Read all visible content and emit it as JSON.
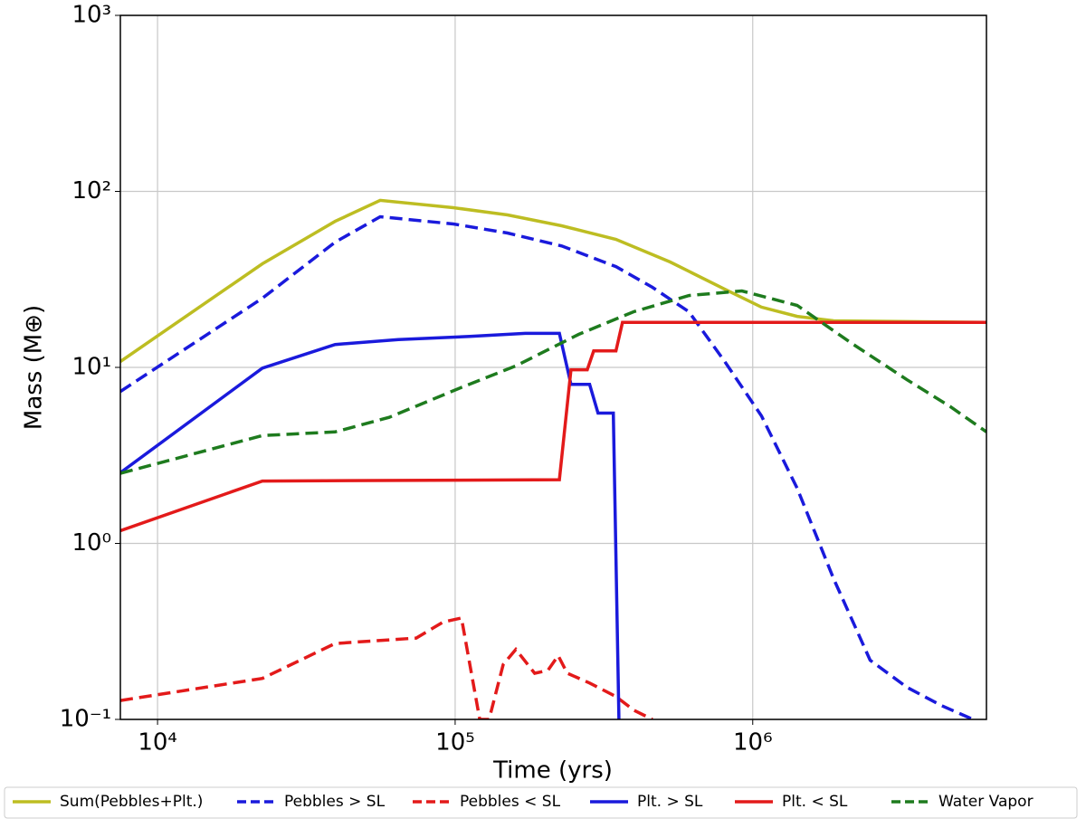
{
  "chart_data": {
    "type": "line",
    "xlabel": "Time  (yrs)",
    "ylabel": "Mass (M⊕)",
    "xscale": "log",
    "yscale": "log",
    "grid": true,
    "legend": "bottom",
    "xlim": [
      7500,
      6100000
    ],
    "ylim": [
      0.1,
      1000
    ],
    "xticks": [
      {
        "value": 10000,
        "label": "10⁴"
      },
      {
        "value": 100000,
        "label": "10⁵"
      },
      {
        "value": 1000000,
        "label": "10⁶"
      }
    ],
    "yticks": [
      {
        "value": 0.1,
        "label": "10⁻¹"
      },
      {
        "value": 1,
        "label": "10⁰"
      },
      {
        "value": 10,
        "label": "10¹"
      },
      {
        "value": 100,
        "label": "10²"
      },
      {
        "value": 1000,
        "label": "10³"
      }
    ],
    "series": [
      {
        "name": "Sum(Pebbles+Plt.)",
        "color": "#bdbd22",
        "linestyle": "solid",
        "x": [
          7500,
          22500,
          39500,
          56000,
          98600,
          150000,
          228000,
          347000,
          528000,
          805000,
          1070000,
          1410000,
          1870000,
          6100000
        ],
        "values": [
          10.8,
          38.8,
          67.6,
          88.9,
          80.8,
          73.5,
          63.8,
          53.4,
          39.7,
          27.8,
          22,
          19.5,
          18.4,
          18
        ]
      },
      {
        "name": "Pebbles > SL",
        "color": "#1a1adc",
        "linestyle": "dashed",
        "x": [
          7500,
          22500,
          39500,
          56000,
          98600,
          150000,
          228000,
          347000,
          460000,
          610000,
          805000,
          1070000,
          1410000,
          1870000,
          2480000,
          3300000,
          4300000,
          5500000
        ],
        "values": [
          7.3,
          24.7,
          51.5,
          71.8,
          65.3,
          58,
          49,
          37.4,
          28.5,
          20.7,
          10.8,
          5.3,
          2.06,
          0.63,
          0.217,
          0.152,
          0.12,
          0.1
        ]
      },
      {
        "name": "Pebbles < SL",
        "color": "#e31a1a",
        "linestyle": "dashed",
        "x": [
          7500,
          22500,
          39500,
          74000,
          91000,
          105000,
          121000,
          130000,
          145000,
          160000,
          185000,
          205000,
          222000,
          238000,
          283000,
          347000,
          398000,
          460000
        ],
        "values": [
          0.128,
          0.171,
          0.27,
          0.29,
          0.357,
          0.377,
          0.1,
          0.1,
          0.205,
          0.25,
          0.183,
          0.19,
          0.23,
          0.183,
          0.161,
          0.135,
          0.113,
          0.1
        ]
      },
      {
        "name": "Plt. > SL",
        "color": "#1a1adc",
        "linestyle": "solid",
        "x": [
          7500,
          22500,
          39500,
          64500,
          112000,
          172000,
          224000,
          245000,
          283000,
          302000,
          340000,
          355000
        ],
        "values": [
          2.52,
          9.9,
          13.5,
          14.4,
          15,
          15.6,
          15.6,
          8,
          8,
          5.5,
          5.5,
          0.1
        ]
      },
      {
        "name": "Plt. < SL",
        "color": "#e31a1a",
        "linestyle": "solid",
        "x": [
          7500,
          22500,
          224000,
          245000,
          278000,
          292000,
          347000,
          365000,
          6100000
        ],
        "values": [
          1.18,
          2.26,
          2.3,
          9.7,
          9.7,
          12.4,
          12.4,
          18,
          18
        ]
      },
      {
        "name": "Water Vapor",
        "color": "#1e7b1e",
        "linestyle": "dashed",
        "x": [
          7500,
          22500,
          39500,
          60000,
          105000,
          160000,
          260000,
          398000,
          610000,
          920000,
          1410000,
          2150000,
          3300000,
          4600000,
          6100000
        ],
        "values": [
          2.5,
          4.1,
          4.3,
          5.2,
          7.7,
          10.2,
          15.4,
          20.7,
          25.6,
          27.2,
          22.5,
          13.7,
          8.5,
          6.0,
          4.3
        ]
      }
    ]
  }
}
